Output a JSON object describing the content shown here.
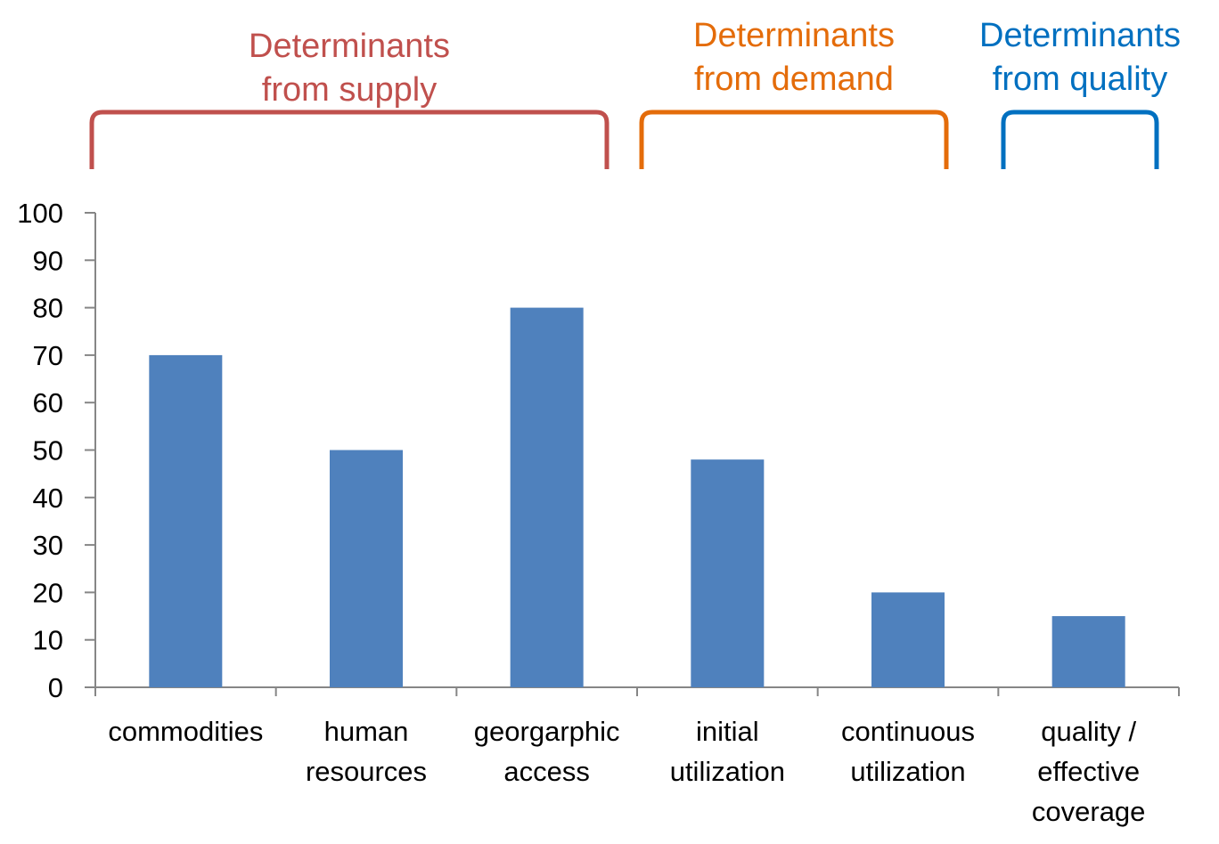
{
  "chart_data": {
    "type": "bar",
    "categories": [
      [
        "commodities"
      ],
      [
        "human",
        "resources"
      ],
      [
        "georgarphic",
        "access"
      ],
      [
        "initial",
        "utilization"
      ],
      [
        "continuous",
        "utilization"
      ],
      [
        "quality /",
        "effective",
        "coverage"
      ]
    ],
    "values": [
      70,
      50,
      80,
      48,
      20,
      15
    ],
    "ylim": [
      0,
      100
    ],
    "yticks": [
      "0",
      "10",
      "20",
      "30",
      "40",
      "50",
      "60",
      "70",
      "80",
      "90",
      "100"
    ],
    "bar_color": "#4F81BD",
    "grid": false,
    "groups": [
      {
        "lines": [
          "Determinants",
          "from supply"
        ],
        "color": "#C0504D",
        "first_category": 0,
        "last_category": 2
      },
      {
        "lines": [
          "Determinants",
          "from demand"
        ],
        "color": "#E46C0A",
        "first_category": 3,
        "last_category": 4
      },
      {
        "lines": [
          "Determinants",
          "from quality"
        ],
        "color": "#0070C0",
        "first_category": 5,
        "last_category": 5
      }
    ]
  }
}
